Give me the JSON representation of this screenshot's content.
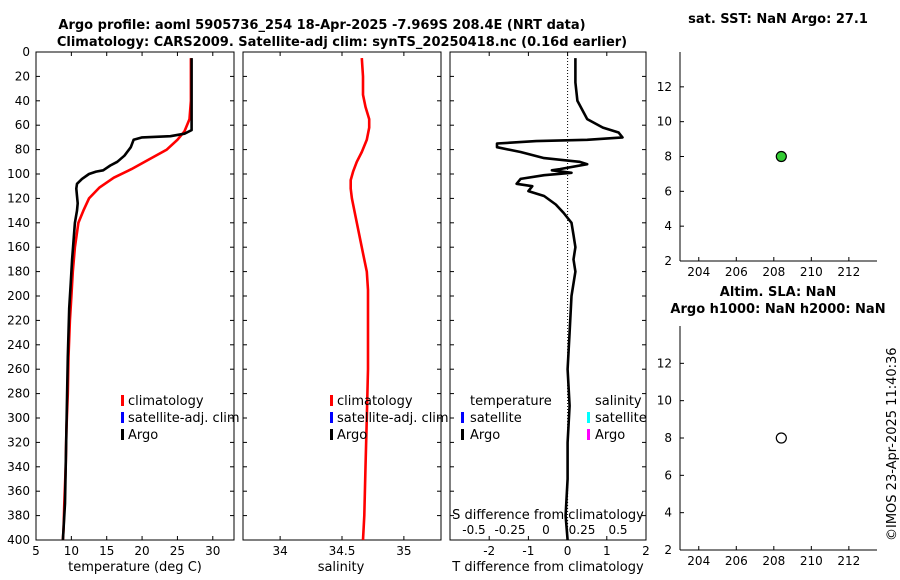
{
  "title_line1": "Argo profile: aoml 5905736_254 18-Apr-2025 -7.969S 208.4E (NRT data)",
  "title_line2": "Climatology: CARS2009. Satellite-adj clim: synTS_20250418.nc (0.16d earlier)",
  "watermark": "©IMOS 23-Apr-2025 11:40:36",
  "colors": {
    "climatology": "#ff0000",
    "satellite": "#0000ff",
    "argo": "#000000",
    "satellite_s": "#00ffff",
    "argo_s": "#ff00ff",
    "dot_fill": "#33cc33"
  },
  "chart_data": [
    {
      "id": "temperature",
      "type": "line",
      "xlabel": "temperature (deg C)",
      "ylabel": "",
      "xlim": [
        5,
        33
      ],
      "ylim": [
        400,
        0
      ],
      "xticks": [
        5,
        10,
        15,
        20,
        25,
        30
      ],
      "yticks": [
        0,
        20,
        40,
        60,
        80,
        100,
        120,
        140,
        160,
        180,
        200,
        220,
        240,
        260,
        280,
        300,
        320,
        340,
        360,
        380,
        400
      ],
      "legend": [
        {
          "label": "climatology",
          "color": "#ff0000"
        },
        {
          "label": "satellite-adj. clim",
          "color": "#0000ff"
        },
        {
          "label": "Argo",
          "color": "#000000"
        }
      ],
      "series": [
        {
          "name": "climatology",
          "color": "#ff0000",
          "points": [
            [
              26.9,
              5
            ],
            [
              26.9,
              40
            ],
            [
              26.7,
              55
            ],
            [
              26.0,
              65
            ],
            [
              25.0,
              72
            ],
            [
              23.5,
              80
            ],
            [
              21.0,
              88
            ],
            [
              18.5,
              96
            ],
            [
              16.0,
              103
            ],
            [
              14.0,
              111
            ],
            [
              12.5,
              120
            ],
            [
              11.7,
              130
            ],
            [
              11.0,
              140
            ],
            [
              10.5,
              160
            ],
            [
              10.2,
              180
            ],
            [
              10.0,
              200
            ],
            [
              9.8,
              220
            ],
            [
              9.6,
              250
            ],
            [
              9.5,
              280
            ],
            [
              9.3,
              310
            ],
            [
              9.2,
              340
            ],
            [
              9.0,
              370
            ],
            [
              8.9,
              390
            ],
            [
              8.8,
              400
            ]
          ]
        },
        {
          "name": "Argo",
          "color": "#000000",
          "points": [
            [
              27.0,
              5
            ],
            [
              27.0,
              40
            ],
            [
              27.0,
              64
            ],
            [
              26.0,
              67
            ],
            [
              24.0,
              69
            ],
            [
              20.0,
              70
            ],
            [
              18.8,
              72
            ],
            [
              18.4,
              78
            ],
            [
              17.5,
              85
            ],
            [
              16.5,
              90
            ],
            [
              15.5,
              93
            ],
            [
              15.0,
              95
            ],
            [
              14.5,
              97
            ],
            [
              13.5,
              98
            ],
            [
              12.5,
              100
            ],
            [
              11.5,
              104
            ],
            [
              10.8,
              108
            ],
            [
              10.7,
              112
            ],
            [
              10.8,
              118
            ],
            [
              10.9,
              124
            ],
            [
              10.8,
              130
            ],
            [
              10.5,
              140
            ],
            [
              10.3,
              155
            ],
            [
              10.1,
              170
            ],
            [
              9.9,
              190
            ],
            [
              9.7,
              210
            ],
            [
              9.6,
              230
            ],
            [
              9.5,
              250
            ],
            [
              9.4,
              280
            ],
            [
              9.3,
              310
            ],
            [
              9.2,
              340
            ],
            [
              9.1,
              370
            ],
            [
              8.9,
              390
            ],
            [
              8.8,
              400
            ]
          ]
        }
      ]
    },
    {
      "id": "salinity",
      "type": "line",
      "xlabel": "salinity",
      "xlim": [
        33.7,
        35.3
      ],
      "ylim": [
        400,
        0
      ],
      "xticks": [
        34,
        34.5,
        35
      ],
      "xtick_labels": [
        "34",
        "34.5",
        "35"
      ],
      "legend": [
        {
          "label": "climatology",
          "color": "#ff0000"
        },
        {
          "label": "satellite-adj. clim",
          "color": "#0000ff"
        },
        {
          "label": "Argo",
          "color": "#000000"
        }
      ],
      "series": [
        {
          "name": "climatology",
          "color": "#ff0000",
          "points": [
            [
              34.66,
              5
            ],
            [
              34.67,
              20
            ],
            [
              34.67,
              35
            ],
            [
              34.69,
              45
            ],
            [
              34.72,
              55
            ],
            [
              34.72,
              62
            ],
            [
              34.7,
              72
            ],
            [
              34.66,
              82
            ],
            [
              34.62,
              90
            ],
            [
              34.59,
              98
            ],
            [
              34.57,
              105
            ],
            [
              34.57,
              112
            ],
            [
              34.58,
              120
            ],
            [
              34.61,
              135
            ],
            [
              34.64,
              150
            ],
            [
              34.67,
              165
            ],
            [
              34.7,
              180
            ],
            [
              34.71,
              195
            ],
            [
              34.71,
              220
            ],
            [
              34.71,
              260
            ],
            [
              34.7,
              300
            ],
            [
              34.69,
              340
            ],
            [
              34.68,
              380
            ],
            [
              34.67,
              400
            ]
          ]
        }
      ]
    },
    {
      "id": "t-difference",
      "type": "line",
      "xlabel": "T difference from climatology",
      "secondary_xlabel": "S difference from climatology",
      "xlim": [
        -3,
        2
      ],
      "ylim": [
        400,
        0
      ],
      "xticks": [
        -2,
        -1,
        0,
        1,
        2
      ],
      "xtick_labels": [
        "-2",
        "-1",
        "0",
        "1",
        "2"
      ],
      "secondary_xticks": [
        -0.5,
        -0.25,
        0,
        0.25,
        0.5
      ],
      "secondary_xtick_labels": [
        "-0.5",
        "-0.25",
        "0",
        "0.25",
        "0.5"
      ],
      "legend_temperature_title": "temperature",
      "legend_salinity_title": "salinity",
      "legend_temperature": [
        {
          "label": "satellite",
          "color": "#0000ff"
        },
        {
          "label": "Argo",
          "color": "#000000"
        }
      ],
      "legend_salinity": [
        {
          "label": "satellite",
          "color": "#00ffff"
        },
        {
          "label": "Argo",
          "color": "#ff00ff"
        }
      ],
      "series": [
        {
          "name": "Argo",
          "color": "#000000",
          "points": [
            [
              0.2,
              5
            ],
            [
              0.2,
              25
            ],
            [
              0.25,
              40
            ],
            [
              0.5,
              55
            ],
            [
              0.9,
              62
            ],
            [
              1.3,
              66
            ],
            [
              1.4,
              70
            ],
            [
              0.5,
              72
            ],
            [
              -0.8,
              73
            ],
            [
              -1.8,
              75
            ],
            [
              -1.8,
              78
            ],
            [
              -1.2,
              82
            ],
            [
              -0.6,
              87
            ],
            [
              0.3,
              90
            ],
            [
              0.5,
              92
            ],
            [
              -0.2,
              96
            ],
            [
              -0.4,
              97
            ],
            [
              0.1,
              99
            ],
            [
              -0.6,
              101
            ],
            [
              -1.2,
              104
            ],
            [
              -1.3,
              108
            ],
            [
              -0.9,
              110
            ],
            [
              -1.0,
              114
            ],
            [
              -0.6,
              118
            ],
            [
              -0.3,
              125
            ],
            [
              -0.1,
              132
            ],
            [
              0.1,
              140
            ],
            [
              0.15,
              150
            ],
            [
              0.2,
              160
            ],
            [
              0.15,
              170
            ],
            [
              0.2,
              180
            ],
            [
              0.1,
              200
            ],
            [
              0.05,
              230
            ],
            [
              0.0,
              260
            ],
            [
              0.05,
              290
            ],
            [
              0.0,
              320
            ],
            [
              0.0,
              350
            ],
            [
              -0.05,
              380
            ],
            [
              0.0,
              400
            ]
          ]
        }
      ]
    },
    {
      "id": "sat-sst",
      "type": "scatter",
      "title": "sat. SST: NaN Argo: 27.1",
      "xlim": [
        203,
        213.5
      ],
      "ylim": [
        2,
        14
      ],
      "xticks": [
        204,
        206,
        208,
        210,
        212
      ],
      "yticks": [
        2,
        4,
        6,
        8,
        10,
        12
      ],
      "points": [
        {
          "x": 208.4,
          "y": 8,
          "filled": true
        }
      ]
    },
    {
      "id": "altim-sla",
      "type": "scatter",
      "title_line1": "Altim. SLA: NaN",
      "title_line2": "Argo h1000: NaN h2000: NaN",
      "xlim": [
        203,
        213.5
      ],
      "ylim": [
        2,
        14
      ],
      "xticks": [
        204,
        206,
        208,
        210,
        212
      ],
      "yticks": [
        2,
        4,
        6,
        8,
        10,
        12
      ],
      "points": [
        {
          "x": 208.4,
          "y": 8,
          "filled": false
        }
      ]
    }
  ]
}
